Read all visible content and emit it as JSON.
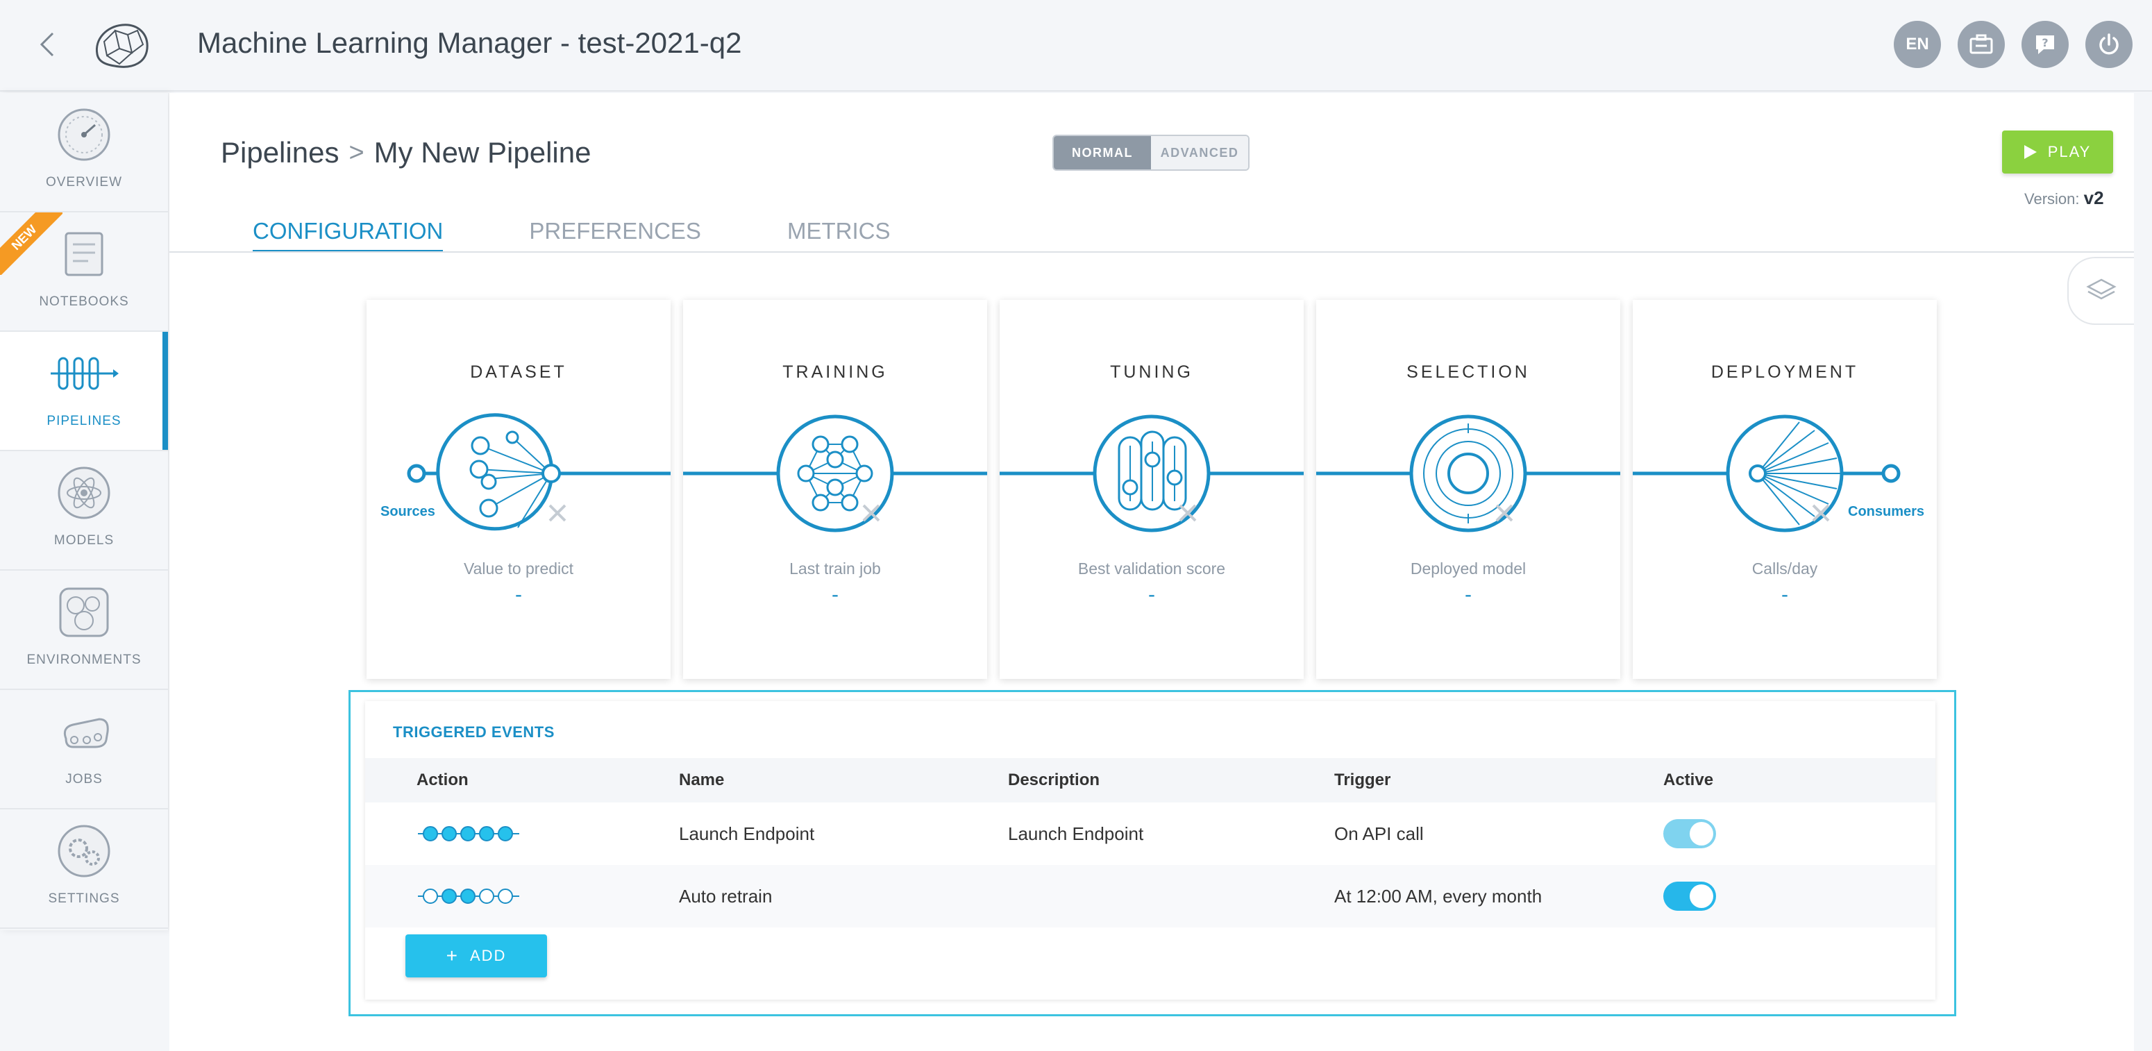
{
  "header": {
    "title": "Machine Learning Manager - test-2021-q2",
    "actions": [
      {
        "name": "language-button",
        "label": "EN"
      },
      {
        "name": "ticket-icon",
        "label": ""
      },
      {
        "name": "help-icon",
        "label": ""
      },
      {
        "name": "power-icon",
        "label": ""
      }
    ]
  },
  "sidebar": {
    "items": [
      {
        "label": "OVERVIEW",
        "icon": "gauge-icon"
      },
      {
        "label": "NOTEBOOKS",
        "icon": "notebook-icon",
        "badge": "NEW"
      },
      {
        "label": "PIPELINES",
        "icon": "pipeline-icon",
        "active": true
      },
      {
        "label": "MODELS",
        "icon": "atom-icon"
      },
      {
        "label": "ENVIRONMENTS",
        "icon": "cluster-icon"
      },
      {
        "label": "JOBS",
        "icon": "conveyor-icon"
      },
      {
        "label": "SETTINGS",
        "icon": "gears-icon"
      }
    ]
  },
  "breadcrumb": {
    "root": "Pipelines",
    "sep": ">",
    "current": "My New Pipeline"
  },
  "mode": {
    "normal": "NORMAL",
    "advanced": "ADVANCED",
    "selected": "NORMAL"
  },
  "play": {
    "label": "PLAY"
  },
  "version": {
    "label": "Version:",
    "value": "v2"
  },
  "tabs": [
    {
      "label": "CONFIGURATION",
      "active": true
    },
    {
      "label": "PREFERENCES"
    },
    {
      "label": "METRICS"
    }
  ],
  "pipeline": {
    "cards": [
      {
        "title": "DATASET",
        "stat": "Value to predict",
        "value": "-",
        "port": "Sources"
      },
      {
        "title": "TRAINING",
        "stat": "Last train job",
        "value": "-"
      },
      {
        "title": "TUNING",
        "stat": "Best validation score",
        "value": "-"
      },
      {
        "title": "SELECTION",
        "stat": "Deployed model",
        "value": "-"
      },
      {
        "title": "DEPLOYMENT",
        "stat": "Calls/day",
        "value": "-",
        "port": "Consumers"
      }
    ]
  },
  "events": {
    "title": "TRIGGERED EVENTS",
    "columns": [
      "Action",
      "Name",
      "Description",
      "Trigger",
      "Active"
    ],
    "rows": [
      {
        "steps": [
          true,
          true,
          true,
          true,
          true
        ],
        "name": "Launch Endpoint",
        "description": "Launch Endpoint",
        "trigger": "On API call",
        "active": true,
        "toggle_color": "#7fd3ef"
      },
      {
        "steps": [
          false,
          true,
          true,
          false,
          false
        ],
        "name": "Auto retrain",
        "description": "",
        "trigger": "At 12:00 AM, every month",
        "active": true,
        "toggle_color": "#26b7ea"
      }
    ],
    "add_label": "ADD"
  },
  "colors": {
    "accent": "#1b8fc6",
    "play": "#8bd13f",
    "add": "#26c1ec",
    "highlight": "#3cc3e0"
  }
}
